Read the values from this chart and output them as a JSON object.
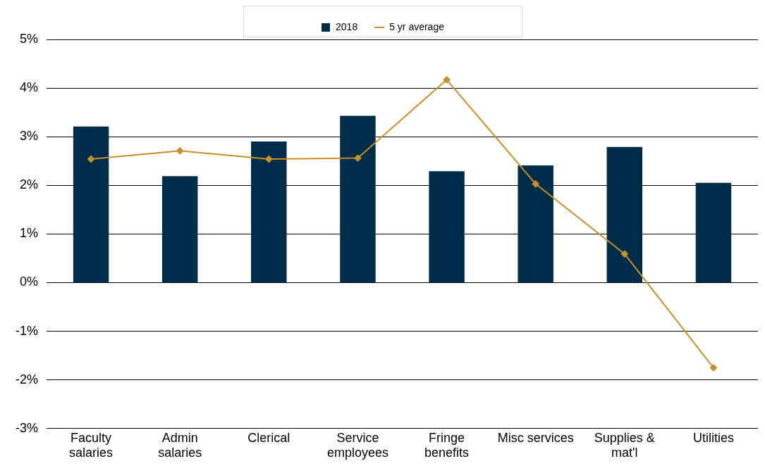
{
  "chart_data": {
    "type": "bar",
    "categories": [
      "Faculty salaries",
      "Admin salaries",
      "Clerical",
      "Service employees",
      "Fringe benefits",
      "Misc services",
      "Supplies & mat'l",
      "Utilities"
    ],
    "series": [
      {
        "name": "2018",
        "color": "#002b49",
        "values": [
          3.21,
          2.19,
          2.9,
          3.43,
          2.29,
          2.41,
          2.79,
          2.05
        ]
      },
      {
        "name": "5 yr average",
        "type": "line",
        "color": "#c8902a",
        "marker": "diamond",
        "values": [
          2.54,
          2.71,
          2.54,
          2.56,
          4.17,
          2.03,
          0.59,
          -1.75
        ]
      }
    ],
    "ylim": [
      -3,
      5
    ],
    "yticks": [
      {
        "value": -3,
        "label": "-3%"
      },
      {
        "value": -2,
        "label": "-2%"
      },
      {
        "value": -1,
        "label": "-1%"
      },
      {
        "value": 0,
        "label": "0%"
      },
      {
        "value": 1,
        "label": "1%"
      },
      {
        "value": 2,
        "label": "2%"
      },
      {
        "value": 3,
        "label": "3%"
      },
      {
        "value": 4,
        "label": "4%"
      },
      {
        "value": 5,
        "label": "5%"
      }
    ],
    "grid": "y",
    "legend": "top"
  }
}
